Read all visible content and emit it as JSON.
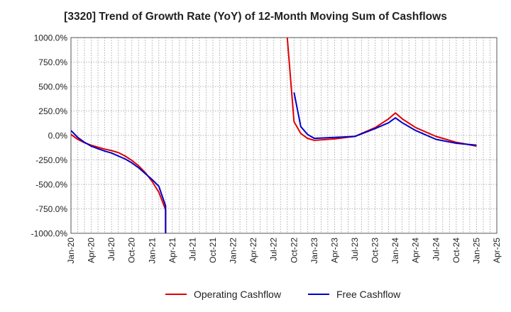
{
  "chart_data": {
    "type": "line",
    "title": "[3320]  Trend of Growth Rate (YoY) of 12-Month Moving Sum of Cashflows",
    "xlabel": "",
    "ylabel": "",
    "ylim": [
      -1000,
      1000
    ],
    "yticks": [
      1000,
      750,
      500,
      250,
      0,
      -250,
      -500,
      -750,
      -1000
    ],
    "ytick_labels": [
      "1000.0%",
      "750.0%",
      "500.0%",
      "250.0%",
      "0.0%",
      "-250.0%",
      "-500.0%",
      "-750.0%",
      "-1000.0%"
    ],
    "x_categories": [
      "Jan-20",
      "Apr-20",
      "Jul-20",
      "Oct-20",
      "Jan-21",
      "Apr-21",
      "Jul-21",
      "Oct-21",
      "Jan-22",
      "Apr-22",
      "Jul-22",
      "Oct-22",
      "Jan-23",
      "Apr-23",
      "Jul-23",
      "Oct-23",
      "Jan-24",
      "Apr-24",
      "Jul-24",
      "Oct-24",
      "Jan-25",
      "Apr-25"
    ],
    "grid": true,
    "legend_position": "bottom",
    "series": [
      {
        "name": "Operating Cashflow",
        "color": "#e00000",
        "points": [
          [
            "Jan-20",
            10
          ],
          [
            "Feb-20",
            -40
          ],
          [
            "Mar-20",
            -75
          ],
          [
            "Apr-20",
            -100
          ],
          [
            "May-20",
            -120
          ],
          [
            "Jun-20",
            -140
          ],
          [
            "Jul-20",
            -155
          ],
          [
            "Aug-20",
            -175
          ],
          [
            "Sep-20",
            -210
          ],
          [
            "Oct-20",
            -255
          ],
          [
            "Nov-20",
            -310
          ],
          [
            "Dec-20",
            -380
          ],
          [
            "Jan-21",
            -470
          ],
          [
            "Feb-21",
            -580
          ],
          [
            "Mar-21",
            -760
          ],
          [
            "Mar-21",
            -1000
          ],
          [
            "Sep-22",
            1000
          ],
          [
            "Oct-22",
            140
          ],
          [
            "Nov-22",
            20
          ],
          [
            "Dec-22",
            -30
          ],
          [
            "Jan-23",
            -50
          ],
          [
            "Apr-23",
            -35
          ],
          [
            "Jul-23",
            -10
          ],
          [
            "Oct-23",
            80
          ],
          [
            "Dec-23",
            170
          ],
          [
            "Jan-24",
            230
          ],
          [
            "Feb-24",
            170
          ],
          [
            "Apr-24",
            80
          ],
          [
            "Jul-24",
            -10
          ],
          [
            "Oct-24",
            -70
          ],
          [
            "Jan-25",
            -110
          ]
        ]
      },
      {
        "name": "Free Cashflow",
        "color": "#0000cc",
        "points": [
          [
            "Jan-20",
            50
          ],
          [
            "Feb-20",
            -20
          ],
          [
            "Mar-20",
            -70
          ],
          [
            "Apr-20",
            -110
          ],
          [
            "May-20",
            -135
          ],
          [
            "Jun-20",
            -160
          ],
          [
            "Jul-20",
            -180
          ],
          [
            "Aug-20",
            -210
          ],
          [
            "Sep-20",
            -240
          ],
          [
            "Oct-20",
            -280
          ],
          [
            "Nov-20",
            -330
          ],
          [
            "Dec-20",
            -390
          ],
          [
            "Jan-21",
            -450
          ],
          [
            "Feb-21",
            -520
          ],
          [
            "Mar-21",
            -720
          ],
          [
            "Mar-21",
            -1000
          ],
          [
            "Oct-22",
            440
          ],
          [
            "Nov-22",
            90
          ],
          [
            "Dec-22",
            10
          ],
          [
            "Jan-23",
            -30
          ],
          [
            "Apr-23",
            -20
          ],
          [
            "Jul-23",
            -10
          ],
          [
            "Oct-23",
            70
          ],
          [
            "Dec-23",
            130
          ],
          [
            "Jan-24",
            180
          ],
          [
            "Feb-24",
            130
          ],
          [
            "Apr-24",
            50
          ],
          [
            "Jul-24",
            -40
          ],
          [
            "Oct-24",
            -80
          ],
          [
            "Jan-25",
            -100
          ]
        ]
      }
    ]
  }
}
